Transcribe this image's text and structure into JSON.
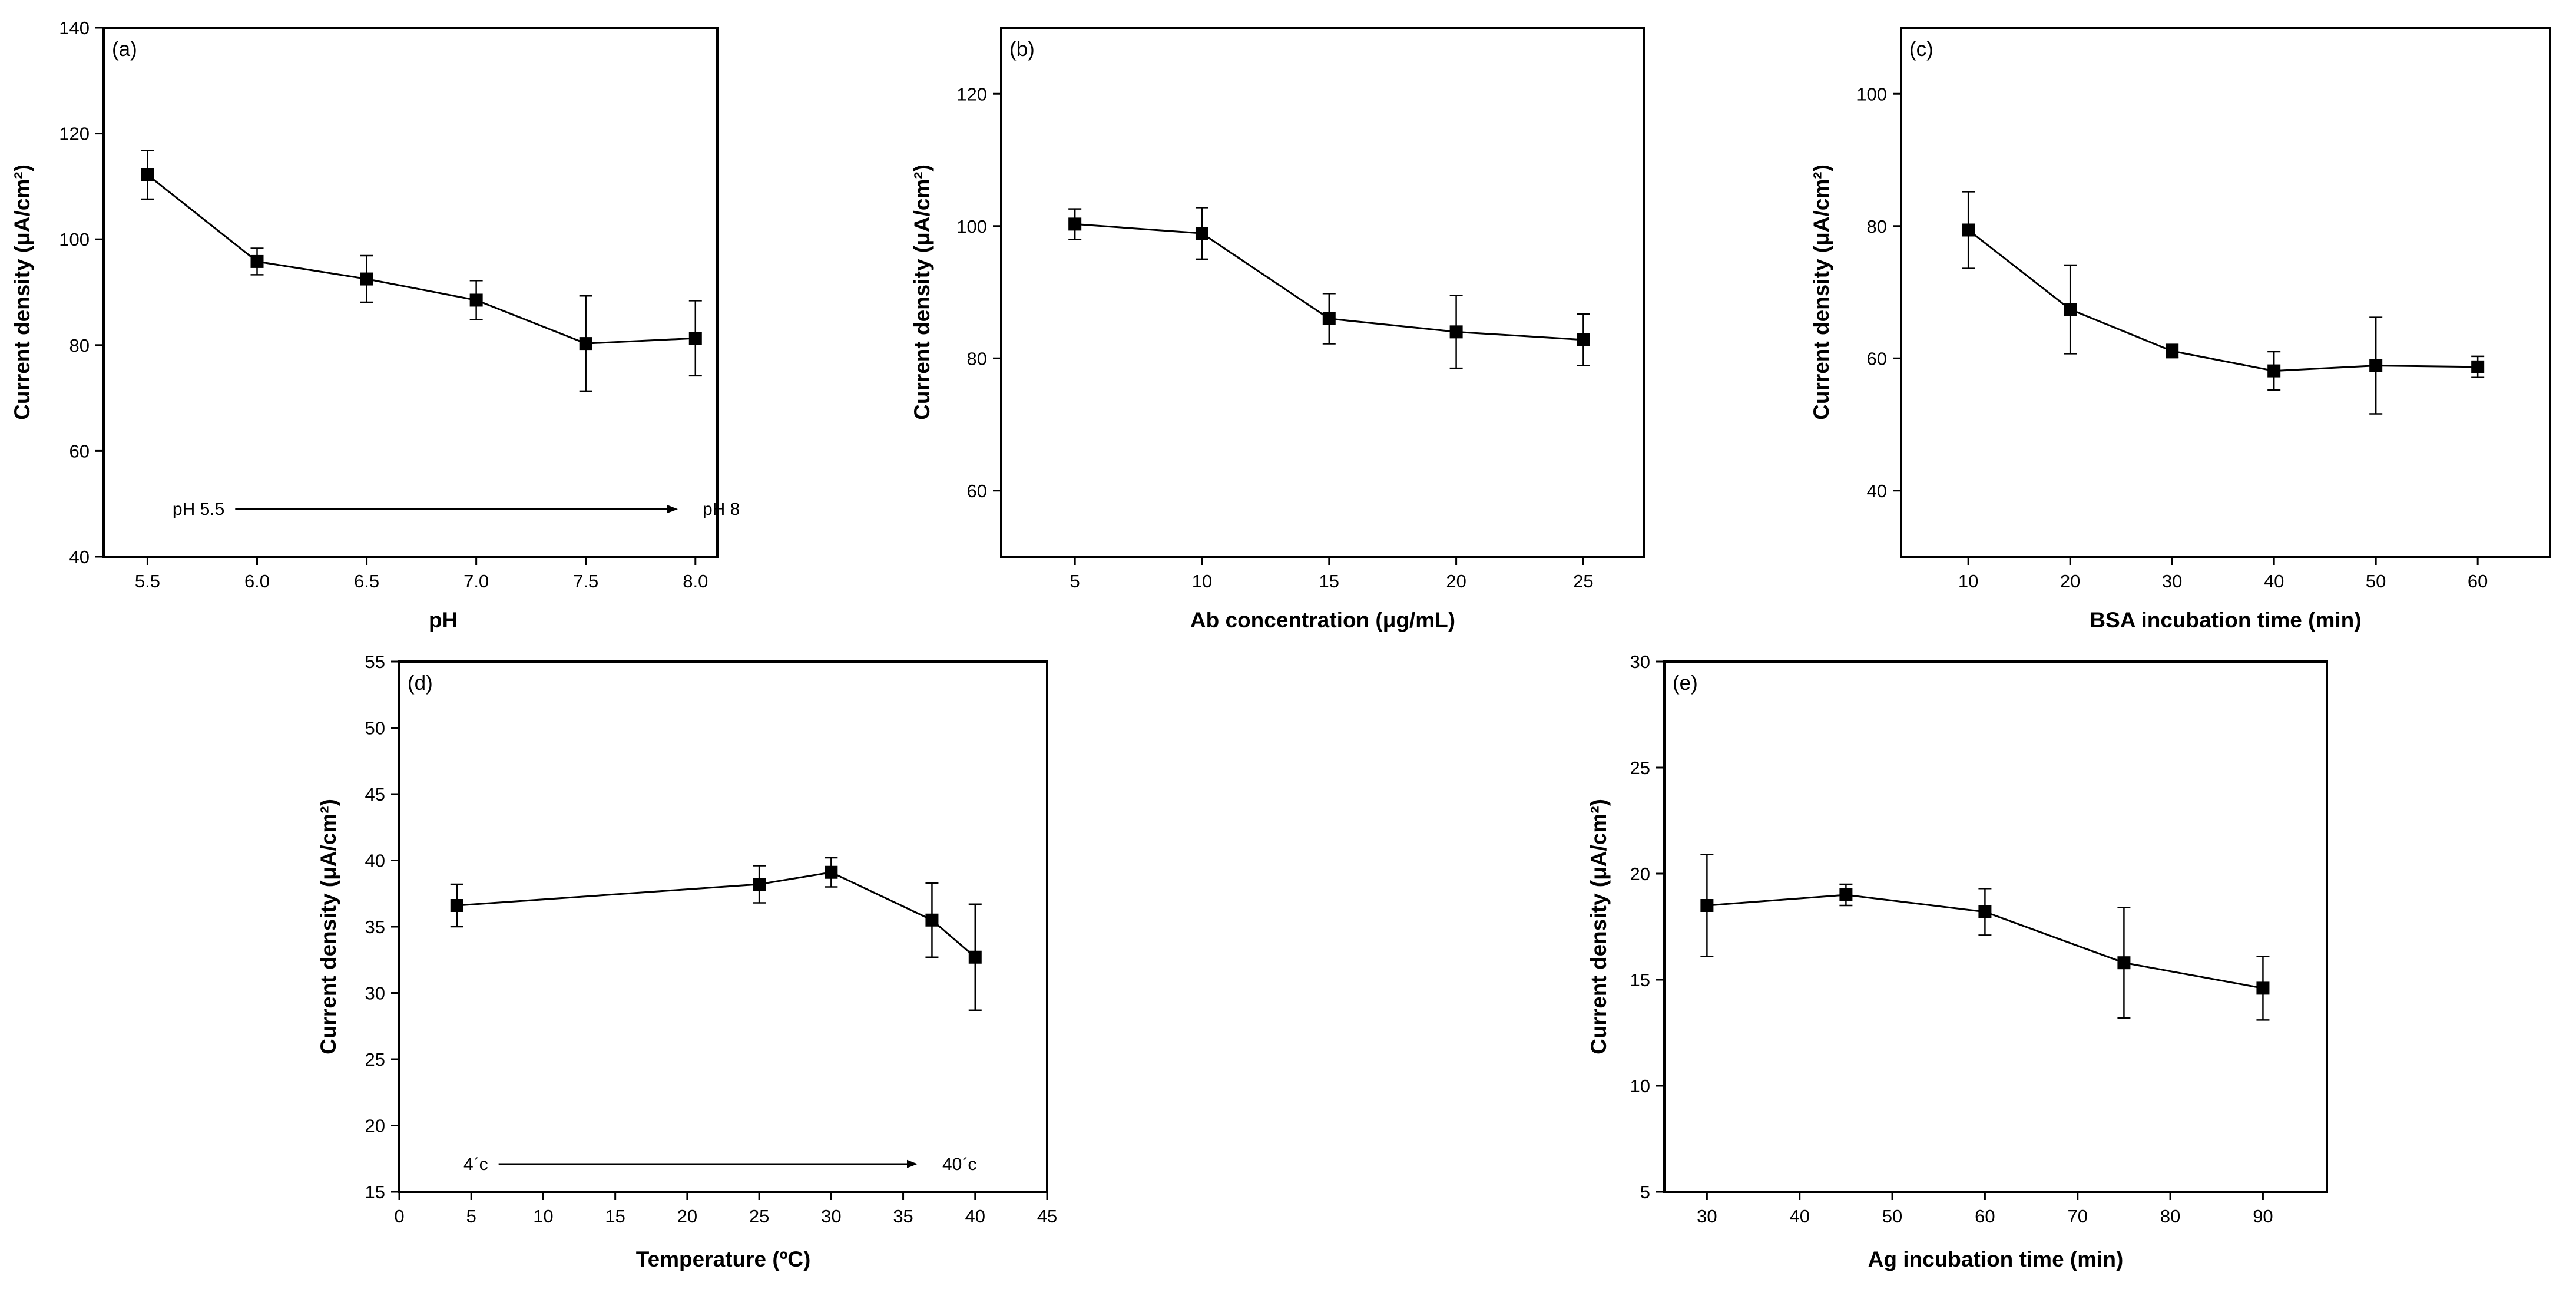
{
  "chart_data": [
    {
      "type": "line",
      "panel_label": "(a)",
      "xlabel": "pH",
      "ylabel": "Current density (μA/cm²)",
      "xlim": [
        5.3,
        8.1
      ],
      "ylim": [
        40,
        140
      ],
      "xticks": [
        5.5,
        6.0,
        6.5,
        7.0,
        7.5,
        8.0
      ],
      "xtick_labels": [
        "5.5",
        "6.0",
        "6.5",
        "7.0",
        "7.5",
        "8.0"
      ],
      "yticks": [
        40,
        60,
        80,
        100,
        120,
        140
      ],
      "ytick_labels": [
        "40",
        "60",
        "80",
        "100",
        "120",
        "140"
      ],
      "series": [
        {
          "name": "pH",
          "x": [
            5.5,
            6.0,
            6.5,
            7.0,
            7.5,
            8.0
          ],
          "y": [
            112.2,
            95.8,
            92.5,
            88.5,
            80.3,
            81.3
          ],
          "err": [
            4.6,
            2.5,
            4.4,
            3.7,
            9.0,
            7.1
          ]
        }
      ],
      "annotation": {
        "left_text": "pH 5.5",
        "right_text": "pH 8",
        "y": 49,
        "x_from": 5.9,
        "x_to": 7.92
      }
    },
    {
      "type": "line",
      "panel_label": "(b)",
      "xlabel": "Ab concentration (μg/mL)",
      "ylabel": "Current density (μA/cm²)",
      "xlim": [
        2.1,
        27.4
      ],
      "ylim": [
        50,
        130
      ],
      "xticks": [
        5,
        10,
        15,
        20,
        25
      ],
      "xtick_labels": [
        "5",
        "10",
        "15",
        "20",
        "25"
      ],
      "yticks": [
        60,
        80,
        100,
        120
      ],
      "ytick_labels": [
        "60",
        "80",
        "100",
        "120"
      ],
      "series": [
        {
          "name": "Ab concentration",
          "x": [
            5,
            10,
            15,
            20,
            25
          ],
          "y": [
            100.3,
            98.9,
            86.0,
            84.0,
            82.8
          ],
          "err": [
            2.3,
            3.9,
            3.8,
            5.5,
            3.9
          ]
        }
      ]
    },
    {
      "type": "line",
      "panel_label": "(c)",
      "xlabel": "BSA incubation time (min)",
      "ylabel": "Current density (μA/cm²)",
      "xlim": [
        3.4,
        67.1
      ],
      "ylim": [
        30,
        110
      ],
      "xticks": [
        10,
        20,
        30,
        40,
        50,
        60
      ],
      "xtick_labels": [
        "10",
        "20",
        "30",
        "40",
        "50",
        "60"
      ],
      "yticks": [
        40,
        60,
        80,
        100
      ],
      "ytick_labels": [
        "40",
        "60",
        "80",
        "100"
      ],
      "series": [
        {
          "name": "BSA incubation time",
          "x": [
            10,
            20,
            30,
            40,
            50,
            60
          ],
          "y": [
            79.4,
            67.4,
            61.1,
            58.1,
            58.9,
            58.7
          ],
          "err": [
            5.8,
            6.7,
            1.0,
            2.9,
            7.3,
            1.6
          ]
        }
      ]
    },
    {
      "type": "line",
      "panel_label": "(d)",
      "xlabel": "Temperature (ºC)",
      "ylabel": "Current density (μA/cm²)",
      "xlim": [
        0,
        45
      ],
      "ylim": [
        15,
        55
      ],
      "xticks": [
        0,
        5,
        10,
        15,
        20,
        25,
        30,
        35,
        40,
        45
      ],
      "xtick_labels": [
        "0",
        "5",
        "10",
        "15",
        "20",
        "25",
        "30",
        "35",
        "40",
        "45"
      ],
      "yticks": [
        15,
        20,
        25,
        30,
        35,
        40,
        45,
        50,
        55
      ],
      "ytick_labels": [
        "15",
        "20",
        "25",
        "30",
        "35",
        "40",
        "45",
        "50",
        "55"
      ],
      "series": [
        {
          "name": "Temperature",
          "x": [
            4,
            25,
            30,
            37,
            40
          ],
          "y": [
            36.6,
            38.2,
            39.1,
            35.5,
            32.7
          ],
          "err": [
            1.6,
            1.4,
            1.1,
            2.8,
            4.0
          ]
        }
      ],
      "annotation": {
        "left_text": "4ˊc",
        "right_text": "40ˊc",
        "y": 17.1,
        "x_from": 6.9,
        "x_to": 36.0
      }
    },
    {
      "type": "line",
      "panel_label": "(e)",
      "xlabel": "Ag incubation time (min)",
      "ylabel": "Current density (μA/cm²)",
      "xlim": [
        25.4,
        96.9
      ],
      "ylim": [
        5,
        30
      ],
      "xticks": [
        30,
        40,
        50,
        60,
        70,
        80,
        90
      ],
      "xtick_labels": [
        "30",
        "40",
        "50",
        "60",
        "70",
        "80",
        "90"
      ],
      "yticks": [
        5,
        10,
        15,
        20,
        25,
        30
      ],
      "ytick_labels": [
        "5",
        "10",
        "15",
        "20",
        "25",
        "30"
      ],
      "series": [
        {
          "name": "Ag incubation time",
          "x": [
            30,
            45,
            60,
            75,
            90
          ],
          "y": [
            18.5,
            19.0,
            18.2,
            15.8,
            14.6
          ],
          "err": [
            2.4,
            0.5,
            1.1,
            2.6,
            1.5
          ]
        }
      ]
    }
  ]
}
